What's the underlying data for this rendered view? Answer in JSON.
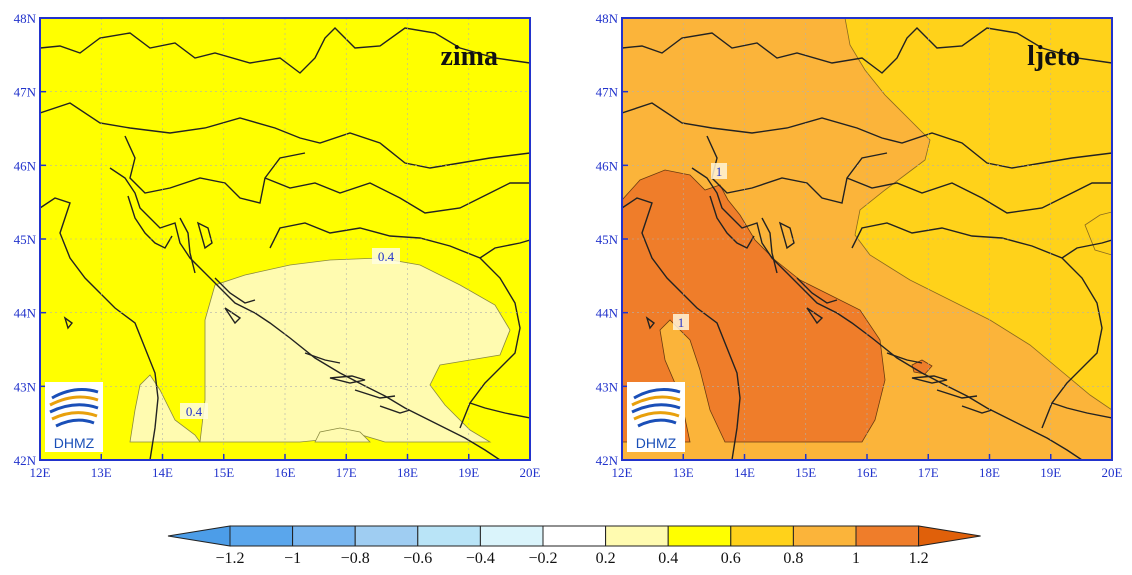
{
  "panels": [
    {
      "title": "zima",
      "lat_labels": [
        "48N",
        "47N",
        "46N",
        "45N",
        "44N",
        "43N",
        "42N"
      ],
      "lon_labels": [
        "12E",
        "13E",
        "14E",
        "15E",
        "16E",
        "17E",
        "18E",
        "19E",
        "20E"
      ],
      "contour_labels": [
        "0.4",
        "0.4"
      ],
      "logo_text": "DHMZ"
    },
    {
      "title": "ljeto",
      "lat_labels": [
        "48N",
        "47N",
        "46N",
        "45N",
        "44N",
        "43N",
        "42N"
      ],
      "lon_labels": [
        "12E",
        "13E",
        "14E",
        "15E",
        "16E",
        "17E",
        "18E",
        "19E",
        "20E"
      ],
      "contour_labels": [
        "1",
        "1"
      ],
      "logo_text": "DHMZ"
    }
  ],
  "colorbar": {
    "labels": [
      "−1.2",
      "−1",
      "−0.8",
      "−0.6",
      "−0.4",
      "−0.2",
      "0.2",
      "0.4",
      "0.6",
      "0.8",
      "1",
      "1.2"
    ],
    "colors": {
      "under": "#4c9de8",
      "bins": [
        "#5aa6ec",
        "#78b6f0",
        "#9fcdf2",
        "#b9e4f7",
        "#daf4fb",
        "#ffffff",
        "#fffbb0",
        "#ffff00",
        "#ffd21a",
        "#fbb43a",
        "#ef7d2a"
      ],
      "over": "#e0600a"
    }
  },
  "colors": {
    "frame": "#2233cc",
    "axis_text": "#2233cc",
    "coast": "#222222",
    "zima_bg": "#ffff00",
    "zima_low": "#fffbb0",
    "ljeto_bg": "#fbb43a",
    "ljeto_light": "#ffd21a",
    "ljeto_dark": "#ef7d2a"
  }
}
